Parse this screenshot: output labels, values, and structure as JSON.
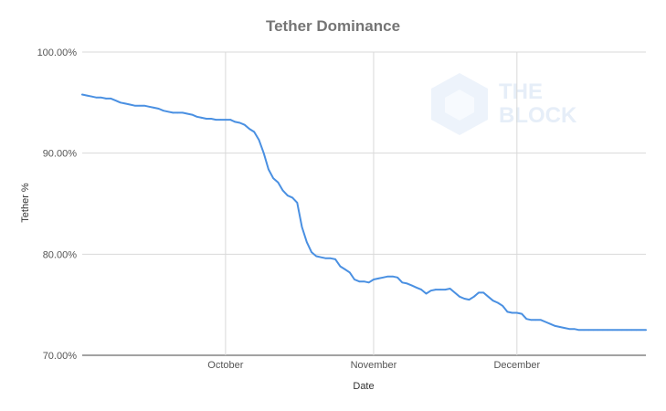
{
  "chart_data": {
    "type": "line",
    "title": "Tether Dominance",
    "xlabel": "Date",
    "ylabel": "Tether %",
    "x_range": [
      "2019-09-01",
      "2019-12-28"
    ],
    "ylim": [
      70,
      100
    ],
    "y_ticks": [
      {
        "value": 70,
        "label": "70.00%"
      },
      {
        "value": 80,
        "label": "80.00%"
      },
      {
        "value": 90,
        "label": "90.00%"
      },
      {
        "value": 100,
        "label": "100.00%"
      }
    ],
    "x_ticks": [
      {
        "date": "2019-10-01",
        "label": "October"
      },
      {
        "date": "2019-11-01",
        "label": "November"
      },
      {
        "date": "2019-12-01",
        "label": "December"
      }
    ],
    "grid": true,
    "legend": "none",
    "watermark": [
      "THE",
      "BLOCK"
    ],
    "series": [
      {
        "color": "#4a90e2",
        "x": [
          "2019-09-01",
          "2019-09-02",
          "2019-09-03",
          "2019-09-04",
          "2019-09-05",
          "2019-09-06",
          "2019-09-07",
          "2019-09-08",
          "2019-09-09",
          "2019-09-10",
          "2019-09-11",
          "2019-09-12",
          "2019-09-13",
          "2019-09-14",
          "2019-09-15",
          "2019-09-16",
          "2019-09-17",
          "2019-09-18",
          "2019-09-19",
          "2019-09-20",
          "2019-09-21",
          "2019-09-22",
          "2019-09-23",
          "2019-09-24",
          "2019-09-25",
          "2019-09-26",
          "2019-09-27",
          "2019-09-28",
          "2019-09-29",
          "2019-09-30",
          "2019-10-01",
          "2019-10-02",
          "2019-10-03",
          "2019-10-04",
          "2019-10-05",
          "2019-10-06",
          "2019-10-07",
          "2019-10-08",
          "2019-10-09",
          "2019-10-10",
          "2019-10-11",
          "2019-10-12",
          "2019-10-13",
          "2019-10-14",
          "2019-10-15",
          "2019-10-16",
          "2019-10-17",
          "2019-10-18",
          "2019-10-19",
          "2019-10-20",
          "2019-10-21",
          "2019-10-22",
          "2019-10-23",
          "2019-10-24",
          "2019-10-25",
          "2019-10-26",
          "2019-10-27",
          "2019-10-28",
          "2019-10-29",
          "2019-10-30",
          "2019-10-31",
          "2019-11-01",
          "2019-11-02",
          "2019-11-03",
          "2019-11-04",
          "2019-11-05",
          "2019-11-06",
          "2019-11-07",
          "2019-11-08",
          "2019-11-09",
          "2019-11-10",
          "2019-11-11",
          "2019-11-12",
          "2019-11-13",
          "2019-11-14",
          "2019-11-15",
          "2019-11-16",
          "2019-11-17",
          "2019-11-18",
          "2019-11-19",
          "2019-11-20",
          "2019-11-21",
          "2019-11-22",
          "2019-11-23",
          "2019-11-24",
          "2019-11-25",
          "2019-11-26",
          "2019-11-27",
          "2019-11-28",
          "2019-11-29",
          "2019-11-30",
          "2019-12-01",
          "2019-12-02",
          "2019-12-03",
          "2019-12-04",
          "2019-12-05",
          "2019-12-06",
          "2019-12-07",
          "2019-12-08",
          "2019-12-09",
          "2019-12-10",
          "2019-12-11",
          "2019-12-12",
          "2019-12-13",
          "2019-12-14",
          "2019-12-15",
          "2019-12-16",
          "2019-12-17",
          "2019-12-18",
          "2019-12-19",
          "2019-12-20",
          "2019-12-21",
          "2019-12-22",
          "2019-12-23",
          "2019-12-24",
          "2019-12-25",
          "2019-12-26",
          "2019-12-27",
          "2019-12-28"
        ],
        "values": [
          95.8,
          95.7,
          95.6,
          95.5,
          95.5,
          95.4,
          95.4,
          95.2,
          95.0,
          94.9,
          94.8,
          94.7,
          94.7,
          94.7,
          94.6,
          94.5,
          94.4,
          94.2,
          94.1,
          94.0,
          94.0,
          94.0,
          93.9,
          93.8,
          93.6,
          93.5,
          93.4,
          93.4,
          93.3,
          93.3,
          93.3,
          93.3,
          93.1,
          93.0,
          92.8,
          92.4,
          92.1,
          91.3,
          90.0,
          88.4,
          87.5,
          87.1,
          86.3,
          85.8,
          85.6,
          85.1,
          82.7,
          81.2,
          80.2,
          79.8,
          79.7,
          79.6,
          79.6,
          79.5,
          78.8,
          78.5,
          78.2,
          77.5,
          77.3,
          77.3,
          77.2,
          77.5,
          77.6,
          77.7,
          77.8,
          77.8,
          77.7,
          77.2,
          77.1,
          76.9,
          76.7,
          76.5,
          76.1,
          76.4,
          76.5,
          76.5,
          76.5,
          76.6,
          76.2,
          75.8,
          75.6,
          75.5,
          75.8,
          76.2,
          76.2,
          75.8,
          75.4,
          75.2,
          74.9,
          74.3,
          74.2,
          74.2,
          74.1,
          73.6,
          73.5,
          73.5,
          73.5,
          73.3,
          73.1,
          72.9,
          72.8,
          72.7,
          72.6,
          72.6,
          72.5,
          72.5,
          72.5,
          72.5,
          72.5,
          72.5,
          72.5,
          72.5,
          72.5,
          72.5,
          72.5,
          72.5,
          72.5,
          72.5,
          72.5
        ]
      }
    ]
  }
}
